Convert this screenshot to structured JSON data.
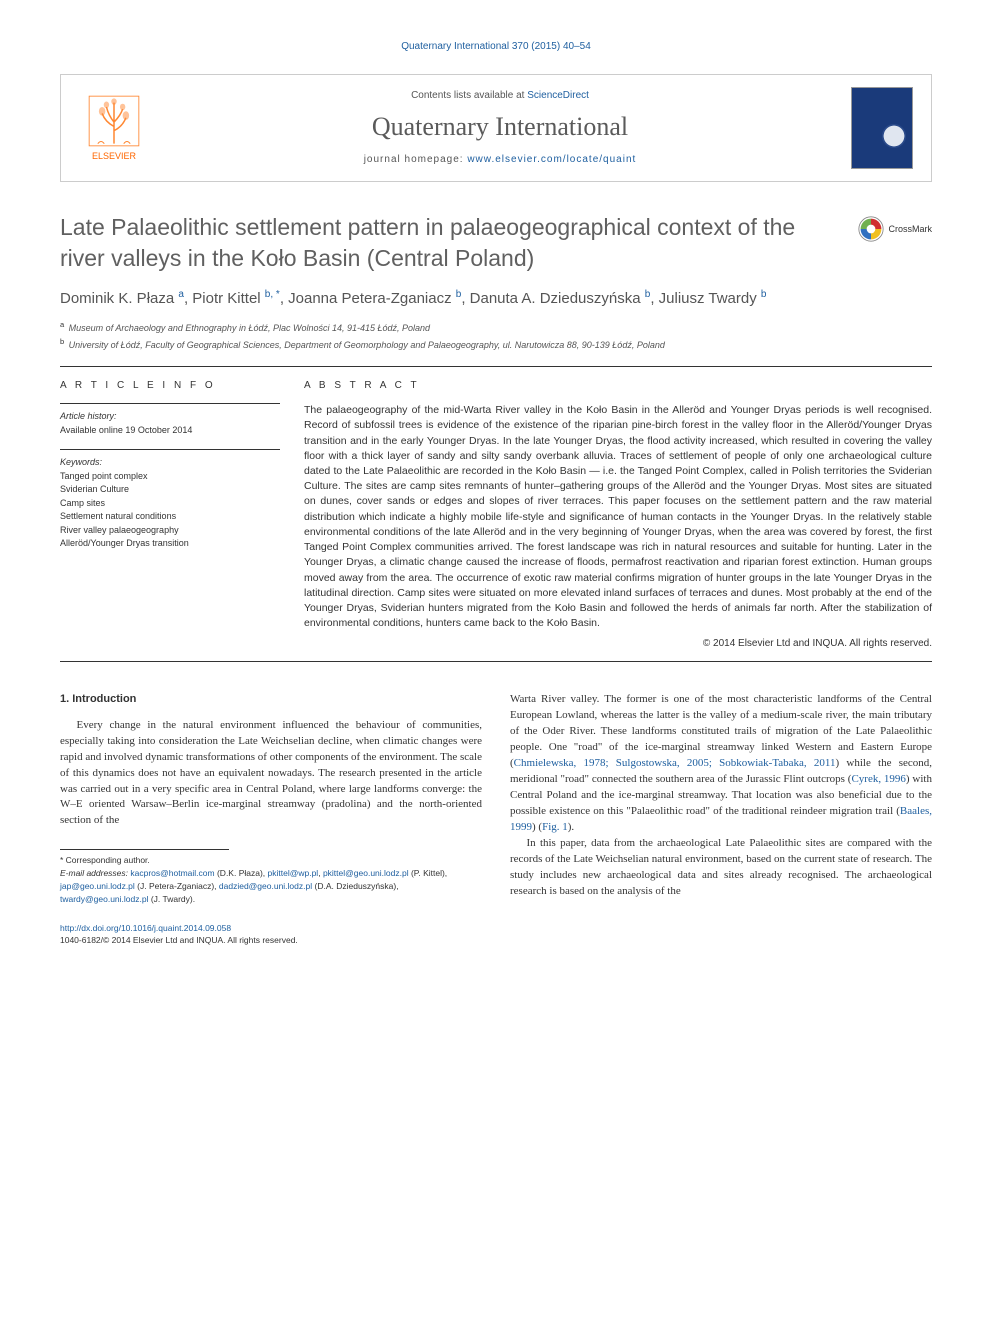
{
  "header": {
    "reference": "Quaternary International 370 (2015) 40–54",
    "contents_line_prefix": "Contents lists available at ",
    "contents_link": "ScienceDirect",
    "journal_name": "Quaternary International",
    "homepage_prefix": "journal homepage: ",
    "homepage_url": "www.elsevier.com/locate/quaint",
    "publisher": "ELSEVIER"
  },
  "crossmark": "CrossMark",
  "title": "Late Palaeolithic settlement pattern in palaeogeographical context of the river valleys in the Koło Basin (Central Poland)",
  "authors_html": "Dominik K. Płaza <sup>a</sup>, Piotr Kittel <sup>b, *</sup>, Joanna Petera-Zganiacz <sup>b</sup>, Danuta A. Dzieduszyńska <sup>b</sup>, Juliusz Twardy <sup>b</sup>",
  "affiliations": [
    {
      "sup": "a",
      "text": "Museum of Archaeology and Ethnography in Łódź, Plac Wolności 14, 91-415 Łódź, Poland"
    },
    {
      "sup": "b",
      "text": "University of Łódź, Faculty of Geographical Sciences, Department of Geomorphology and Palaeogeography, ul. Narutowicza 88, 90-139 Łódź, Poland"
    }
  ],
  "info": {
    "heading": "A R T I C L E   I N F O",
    "history_label": "Article history:",
    "history_text": "Available online 19 October 2014",
    "keywords_label": "Keywords:",
    "keywords": [
      "Tanged point complex",
      "Sviderian Culture",
      "Camp sites",
      "Settlement natural conditions",
      "River valley palaeogeography",
      "Alleröd/Younger Dryas transition"
    ]
  },
  "abstract": {
    "heading": "A B S T R A C T",
    "text": "The palaeogeography of the mid-Warta River valley in the Koło Basin in the Alleröd and Younger Dryas periods is well recognised. Record of subfossil trees is evidence of the existence of the riparian pine-birch forest in the valley floor in the Alleröd/Younger Dryas transition and in the early Younger Dryas. In the late Younger Dryas, the flood activity increased, which resulted in covering the valley floor with a thick layer of sandy and silty sandy overbank alluvia. Traces of settlement of people of only one archaeological culture dated to the Late Palaeolithic are recorded in the Koło Basin — i.e. the Tanged Point Complex, called in Polish territories the Sviderian Culture. The sites are camp sites remnants of hunter–gathering groups of the Alleröd and the Younger Dryas. Most sites are situated on dunes, cover sands or edges and slopes of river terraces. This paper focuses on the settlement pattern and the raw material distribution which indicate a highly mobile life-style and significance of human contacts in the Younger Dryas. In the relatively stable environmental conditions of the late Alleröd and in the very beginning of Younger Dryas, when the area was covered by forest, the first Tanged Point Complex communities arrived. The forest landscape was rich in natural resources and suitable for hunting. Later in the Younger Dryas, a climatic change caused the increase of floods, permafrost reactivation and riparian forest extinction. Human groups moved away from the area. The occurrence of exotic raw material confirms migration of hunter groups in the late Younger Dryas in the latitudinal direction. Camp sites were situated on more elevated inland surfaces of terraces and dunes. Most probably at the end of the Younger Dryas, Sviderian hunters migrated from the Koło Basin and followed the herds of animals far north. After the stabilization of environmental conditions, hunters came back to the Koło Basin.",
    "copyright": "© 2014 Elsevier Ltd and INQUA. All rights reserved."
  },
  "body": {
    "section_heading": "1. Introduction",
    "p1": "Every change in the natural environment influenced the behaviour of communities, especially taking into consideration the Late Weichselian decline, when climatic changes were rapid and involved dynamic transformations of other components of the environment. The scale of this dynamics does not have an equivalent nowadays. The research presented in the article was carried out in a very specific area in Central Poland, where large landforms converge: the W–E oriented Warsaw–Berlin ice-marginal streamway (pradolina) and the north-oriented section of the",
    "p2a": "Warta River valley. The former is one of the most characteristic landforms of the Central European Lowland, whereas the latter is the valley of a medium-scale river, the main tributary of the Oder River. These landforms constituted trails of migration of the Late Palaeolithic people. One \"road\" of the ice-marginal streamway linked Western and Eastern Europe (",
    "p2_link1": "Chmielewska, 1978; Sulgostowska, 2005; Sobkowiak-Tabaka, 2011",
    "p2b": ") while the second, meridional \"road\" connected the southern area of the Jurassic Flint outcrops (",
    "p2_link2": "Cyrek, 1996",
    "p2c": ") with Central Poland and the ice-marginal streamway. That location was also beneficial due to the possible existence on this \"Palaeolithic road\" of the traditional reindeer migration trail (",
    "p2_link3": "Baales, 1999",
    "p2d": ") (",
    "p2_link4": "Fig. 1",
    "p2e": ").",
    "p3": "In this paper, data from the archaeological Late Palaeolithic sites are compared with the records of the Late Weichselian natural environment, based on the current state of research. The study includes new archaeological data and sites already recognised. The archaeological research is based on the analysis of the"
  },
  "footnotes": {
    "corr": "* Corresponding author.",
    "email_label": "E-mail addresses: ",
    "emails_html": "<a>kacpros@hotmail.com</a> (D.K. Płaza), <a>pkittel@wp.pl</a>, <a>pkittel@geo.uni.lodz.pl</a> (P. Kittel), <a>jap@geo.uni.lodz.pl</a> (J. Petera-Zganiacz), <a>dadzied@geo.uni.lodz.pl</a> (D.A. Dzieduszyńska), <a>twardy@geo.uni.lodz.pl</a> (J. Twardy)."
  },
  "footer": {
    "doi": "http://dx.doi.org/10.1016/j.quaint.2014.09.058",
    "issn_line": "1040-6182/© 2014 Elsevier Ltd and INQUA. All rights reserved."
  },
  "colors": {
    "link": "#2060a0",
    "publisher": "#ff6600",
    "cover_bg": "#1a3a7a",
    "heading_gray": "#606060",
    "rule": "#333333"
  }
}
